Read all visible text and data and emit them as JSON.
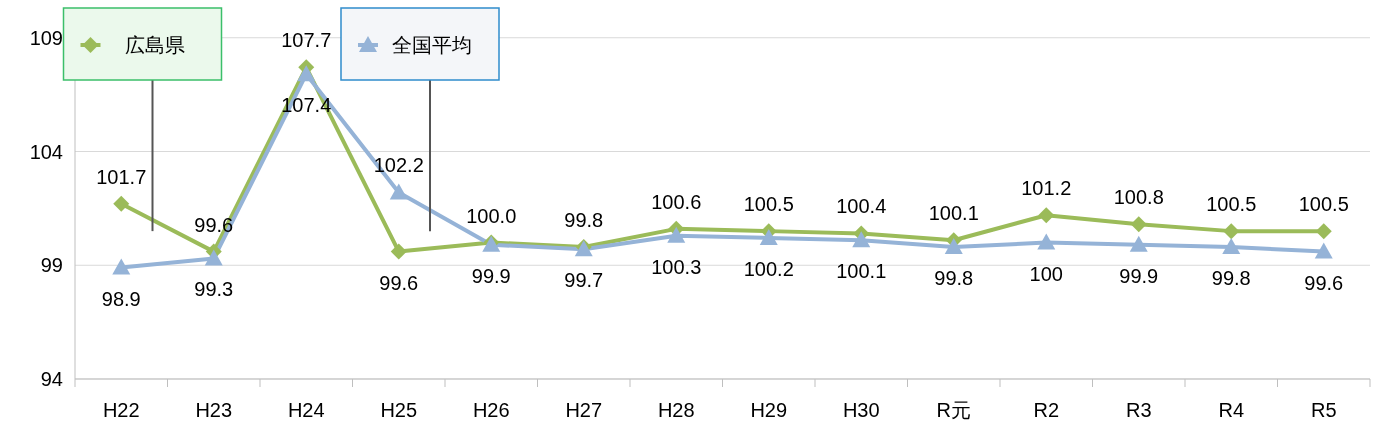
{
  "chart_data": {
    "type": "line",
    "categories": [
      "H22",
      "H23",
      "H24",
      "H25",
      "H26",
      "H27",
      "H28",
      "H29",
      "H30",
      "R元",
      "R2",
      "R3",
      "R4",
      "R5"
    ],
    "series": [
      {
        "name": "広島県",
        "color": "#9bbb59",
        "marker": "diamond",
        "values": [
          101.7,
          99.6,
          107.7,
          99.6,
          100.0,
          99.8,
          100.6,
          100.5,
          100.4,
          100.1,
          101.2,
          100.8,
          100.5,
          100.5
        ],
        "value_labels": [
          "101.7",
          "99.6",
          "107.7",
          "99.6",
          "100.0",
          "99.8",
          "100.6",
          "100.5",
          "100.4",
          "100.1",
          "101.2",
          "100.8",
          "100.5",
          "100.5"
        ]
      },
      {
        "name": "全国平均",
        "color": "#95b3d7",
        "marker": "triangle",
        "values": [
          98.9,
          99.3,
          107.4,
          102.2,
          99.9,
          99.7,
          100.3,
          100.2,
          100.1,
          99.8,
          100,
          99.9,
          99.8,
          99.6
        ],
        "value_labels": [
          "98.9",
          "99.3",
          "107.4",
          "102.2",
          "99.9",
          "99.7",
          "100.3",
          "100.2",
          "100.1",
          "99.8",
          "100",
          "99.9",
          "99.8",
          "99.6"
        ]
      }
    ],
    "ylim": [
      94,
      110
    ],
    "yticks": [
      94,
      99,
      104,
      109
    ],
    "grid": "y",
    "legend": "top left"
  }
}
